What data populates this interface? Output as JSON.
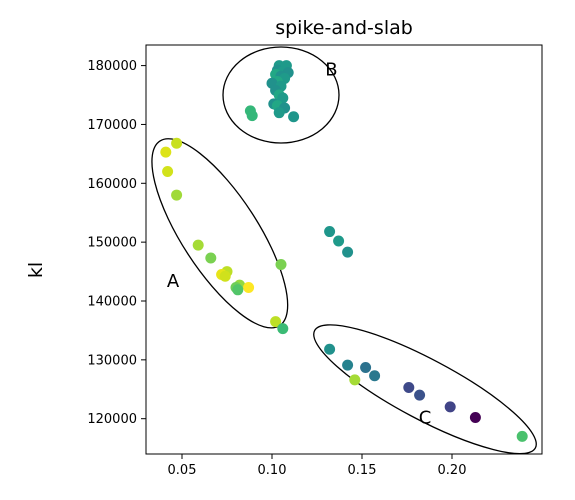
{
  "chart_data": {
    "type": "scatter",
    "title": "spike-and-slab",
    "xlabel": "",
    "ylabel": "kl",
    "xlim": [
      0.03,
      0.25
    ],
    "ylim": [
      114000,
      183500
    ],
    "xticks": [
      0.05,
      0.1,
      0.15,
      0.2
    ],
    "xtick_labels": [
      "0.05",
      "0.10",
      "0.15",
      "0.20"
    ],
    "yticks": [
      120000,
      130000,
      140000,
      150000,
      160000,
      170000,
      180000
    ],
    "ytick_labels": [
      "120000",
      "130000",
      "140000",
      "150000",
      "160000",
      "170000",
      "180000"
    ],
    "grid": false,
    "legend": "none",
    "colormap": "viridis",
    "points": [
      {
        "x": 0.104,
        "y": 180000,
        "color": "#1f9a8a"
      },
      {
        "x": 0.108,
        "y": 180000,
        "color": "#1f9a8a"
      },
      {
        "x": 0.103,
        "y": 179200,
        "color": "#21918c"
      },
      {
        "x": 0.106,
        "y": 179000,
        "color": "#1f9a8a"
      },
      {
        "x": 0.109,
        "y": 178800,
        "color": "#21918c"
      },
      {
        "x": 0.102,
        "y": 178500,
        "color": "#22a785"
      },
      {
        "x": 0.105,
        "y": 178200,
        "color": "#21918c"
      },
      {
        "x": 0.107,
        "y": 177800,
        "color": "#1f9a8a"
      },
      {
        "x": 0.103,
        "y": 177300,
        "color": "#22a785"
      },
      {
        "x": 0.1,
        "y": 177000,
        "color": "#21918c"
      },
      {
        "x": 0.105,
        "y": 176500,
        "color": "#1f9a8a"
      },
      {
        "x": 0.102,
        "y": 175800,
        "color": "#21918c"
      },
      {
        "x": 0.104,
        "y": 175000,
        "color": "#22a785"
      },
      {
        "x": 0.106,
        "y": 174500,
        "color": "#1f9a8a"
      },
      {
        "x": 0.101,
        "y": 173500,
        "color": "#21918c"
      },
      {
        "x": 0.103,
        "y": 173200,
        "color": "#22a785"
      },
      {
        "x": 0.107,
        "y": 172800,
        "color": "#21918c"
      },
      {
        "x": 0.088,
        "y": 172300,
        "color": "#35b779"
      },
      {
        "x": 0.089,
        "y": 171500,
        "color": "#35b779"
      },
      {
        "x": 0.104,
        "y": 172000,
        "color": "#1f9a8a"
      },
      {
        "x": 0.112,
        "y": 171300,
        "color": "#1f968b"
      },
      {
        "x": 0.047,
        "y": 166800,
        "color": "#c8e020"
      },
      {
        "x": 0.041,
        "y": 165300,
        "color": "#dde318"
      },
      {
        "x": 0.042,
        "y": 162000,
        "color": "#d2e21b"
      },
      {
        "x": 0.047,
        "y": 158000,
        "color": "#a0da39"
      },
      {
        "x": 0.059,
        "y": 149500,
        "color": "#a5db36"
      },
      {
        "x": 0.066,
        "y": 147300,
        "color": "#7ad151"
      },
      {
        "x": 0.105,
        "y": 146200,
        "color": "#7ad151"
      },
      {
        "x": 0.075,
        "y": 145000,
        "color": "#bddf26"
      },
      {
        "x": 0.072,
        "y": 144500,
        "color": "#e7e419"
      },
      {
        "x": 0.074,
        "y": 144200,
        "color": "#d0e11c"
      },
      {
        "x": 0.082,
        "y": 142700,
        "color": "#95d840"
      },
      {
        "x": 0.08,
        "y": 142300,
        "color": "#6ece58"
      },
      {
        "x": 0.087,
        "y": 142300,
        "color": "#fde725"
      },
      {
        "x": 0.081,
        "y": 141900,
        "color": "#52c569"
      },
      {
        "x": 0.102,
        "y": 136500,
        "color": "#bddf26"
      },
      {
        "x": 0.106,
        "y": 135300,
        "color": "#3bbb75"
      },
      {
        "x": 0.132,
        "y": 151800,
        "color": "#1f968b"
      },
      {
        "x": 0.137,
        "y": 150200,
        "color": "#1f9a8a"
      },
      {
        "x": 0.142,
        "y": 148300,
        "color": "#21918c"
      },
      {
        "x": 0.132,
        "y": 131800,
        "color": "#21918c"
      },
      {
        "x": 0.142,
        "y": 129100,
        "color": "#26828e"
      },
      {
        "x": 0.152,
        "y": 128700,
        "color": "#2c728e"
      },
      {
        "x": 0.157,
        "y": 127300,
        "color": "#2a788e"
      },
      {
        "x": 0.146,
        "y": 126600,
        "color": "#a5db36"
      },
      {
        "x": 0.176,
        "y": 125300,
        "color": "#3e4989"
      },
      {
        "x": 0.182,
        "y": 124000,
        "color": "#3b528b"
      },
      {
        "x": 0.199,
        "y": 122000,
        "color": "#414487"
      },
      {
        "x": 0.213,
        "y": 120200,
        "color": "#440154"
      },
      {
        "x": 0.239,
        "y": 117000,
        "color": "#4ac16d"
      }
    ],
    "annotations": [
      {
        "text": "A",
        "x": 0.045,
        "y": 142400
      },
      {
        "text": "B",
        "x": 0.133,
        "y": 178300
      },
      {
        "text": "C",
        "x": 0.185,
        "y": 119200
      }
    ],
    "ellipses": [
      {
        "name": "ellipse-a",
        "cx": 0.071,
        "cy": 151500,
        "rx_px": 110,
        "ry_px": 38,
        "angle_deg": 57
      },
      {
        "name": "ellipse-b",
        "cx": 0.105,
        "cy": 175000,
        "rx_px": 58,
        "ry_px": 48,
        "angle_deg": 0
      },
      {
        "name": "ellipse-c",
        "cx": 0.185,
        "cy": 125000,
        "rx_px": 125,
        "ry_px": 30,
        "angle_deg": 28
      }
    ]
  }
}
